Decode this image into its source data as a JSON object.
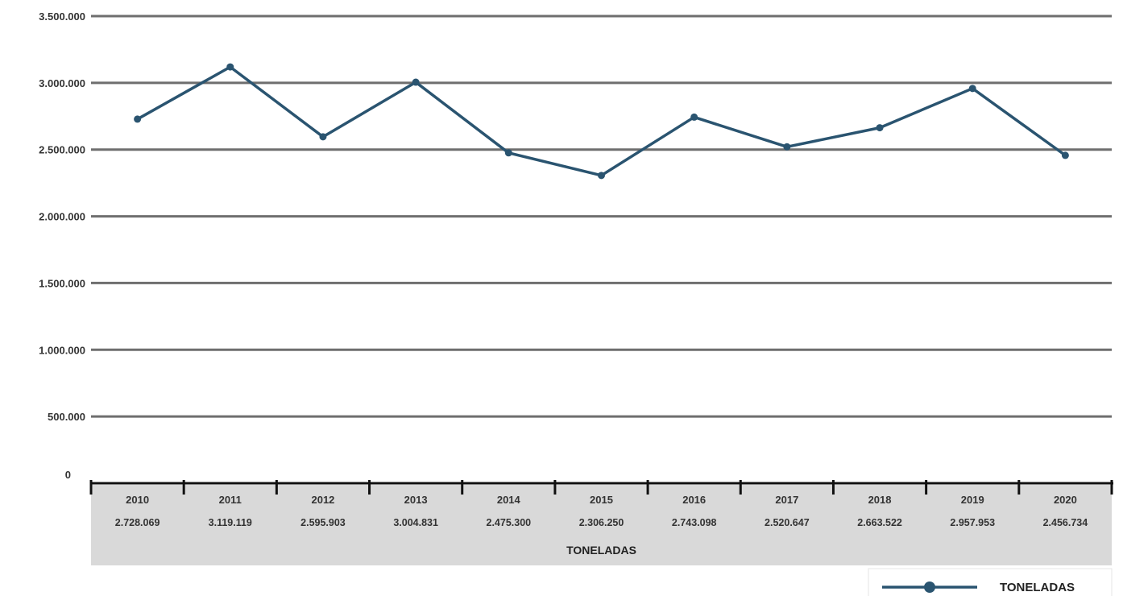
{
  "chart_data": {
    "type": "line",
    "categories": [
      "2010",
      "2011",
      "2012",
      "2013",
      "2014",
      "2015",
      "2016",
      "2017",
      "2018",
      "2019",
      "2020"
    ],
    "series": [
      {
        "name": "TONELADAS",
        "values": [
          2728069,
          3119119,
          2595903,
          3004831,
          2475300,
          2306250,
          2743098,
          2520647,
          2663522,
          2957953,
          2456734
        ],
        "value_labels": [
          "2.728.069",
          "3.119.119",
          "2.595.903",
          "3.004.831",
          "2.475.300",
          "2.306.250",
          "2.743.098",
          "2.520.647",
          "2.663.522",
          "2.957.953",
          "2.456.734"
        ],
        "color": "#2a5470"
      }
    ],
    "ylim": [
      0,
      3500000
    ],
    "y_ticks": [
      0,
      500000,
      1000000,
      1500000,
      2000000,
      2500000,
      3000000,
      3500000
    ],
    "y_tick_labels": [
      "0",
      "500.000",
      "1.000.000",
      "1.500.000",
      "2.000.000",
      "2.500.000",
      "3.000.000",
      "3.500.000"
    ],
    "grid": true,
    "grid_color": "#6e6e6e",
    "table_band_color": "#d9d9d9",
    "legend": {
      "position": "bottom-right",
      "label": "TONELADAS"
    },
    "data_table": true
  }
}
